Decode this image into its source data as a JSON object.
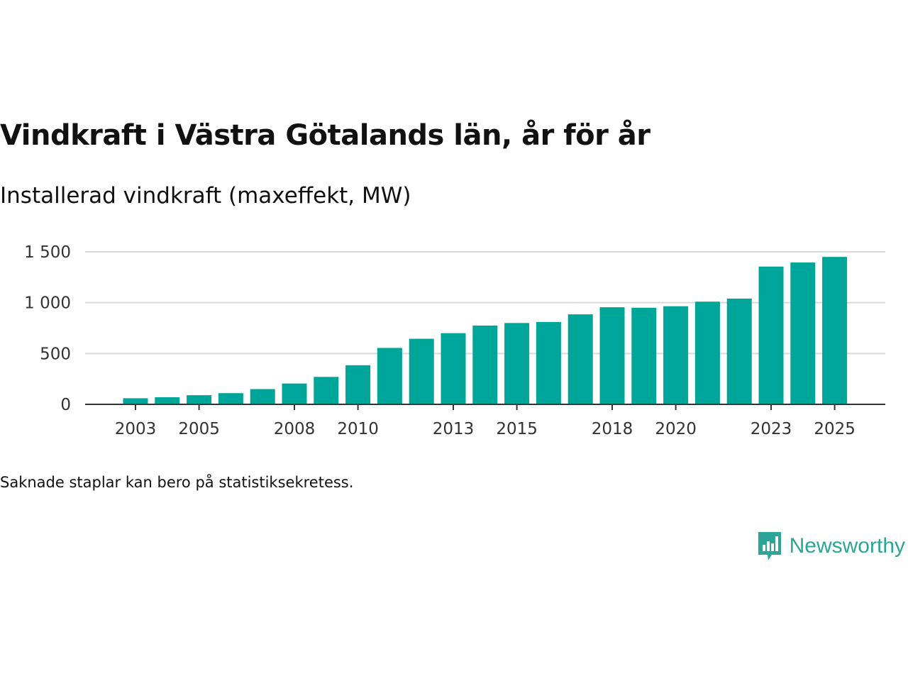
{
  "header": {
    "title": "Vindkraft i Västra Götalands län, år för år",
    "subtitle": "Installerad vindkraft (maxeffekt, MW)"
  },
  "footer": {
    "note": "Saknade staplar kan bero på statistiksekretess.",
    "brand": "Newsworthy"
  },
  "colors": {
    "bar": "#00a599",
    "grid": "#d9d9d9",
    "axis": "#333333",
    "brand": "#2aa597"
  },
  "chart_data": {
    "type": "bar",
    "title": "Vindkraft i Västra Götalands län, år för år",
    "ylabel": "Installerad vindkraft (maxeffekt, MW)",
    "xlabel": "",
    "ylim": [
      0,
      1500
    ],
    "yticks": [
      0,
      500,
      1000,
      1500
    ],
    "ytick_labels": [
      "0",
      "500",
      "1 000",
      "1 500"
    ],
    "grid": true,
    "categories": [
      "2003",
      "2004",
      "2005",
      "2006",
      "2007",
      "2008",
      "2009",
      "2010",
      "2011",
      "2012",
      "2013",
      "2014",
      "2015",
      "2016",
      "2017",
      "2018",
      "2019",
      "2020",
      "2021",
      "2022",
      "2023",
      "2024",
      "2025"
    ],
    "xtick_labels": [
      "2003",
      "2005",
      "2008",
      "2010",
      "2013",
      "2015",
      "2018",
      "2020",
      "2023",
      "2025"
    ],
    "values": [
      60,
      70,
      90,
      110,
      150,
      205,
      270,
      385,
      555,
      645,
      700,
      775,
      800,
      810,
      885,
      955,
      950,
      965,
      1010,
      1040,
      1355,
      1395,
      1450
    ]
  }
}
